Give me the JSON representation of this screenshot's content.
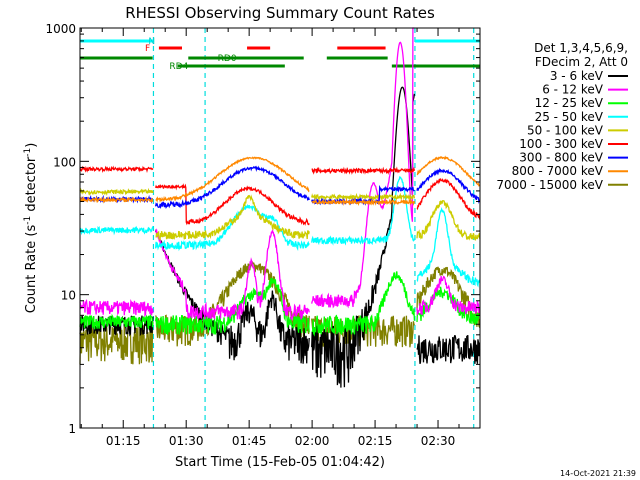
{
  "chart_data": {
    "type": "line",
    "title": "RHESSI Observing Summary Count Rates",
    "xlabel": "Start Time (15-Feb-05 01:04:42)",
    "ylabel_main": "Count Rate (s",
    "ylabel_sup1": "-1",
    "ylabel_mid": " detector",
    "ylabel_sup2": "-1",
    "ylabel_end": ")",
    "yscale": "log",
    "ylim": [
      1,
      1000
    ],
    "xlim_minutes": [
      4.7,
      100
    ],
    "xticks": [
      {
        "m": 15,
        "label": "01:15"
      },
      {
        "m": 30,
        "label": "01:30"
      },
      {
        "m": 45,
        "label": "01:45"
      },
      {
        "m": 60,
        "label": "02:00"
      },
      {
        "m": 75,
        "label": "02:15"
      },
      {
        "m": 90,
        "label": "02:30"
      }
    ],
    "yticks": [
      {
        "v": 1,
        "label": "1"
      },
      {
        "v": 10,
        "label": "10"
      },
      {
        "v": 100,
        "label": "100"
      },
      {
        "v": 1000,
        "label": "1000"
      }
    ],
    "legend_header": [
      "Det 1,3,4,5,6,9,",
      "FDecim 2, Att 0"
    ],
    "series": [
      {
        "name": "3 - 6 keV",
        "color": "#000000"
      },
      {
        "name": "6 - 12 keV",
        "color": "#ff00ff"
      },
      {
        "name": "12 - 25 keV",
        "color": "#00ff00"
      },
      {
        "name": "25 - 50 keV",
        "color": "#00ffff"
      },
      {
        "name": "50 - 100 keV",
        "color": "#cccc00"
      },
      {
        "name": "100 - 300 keV",
        "color": "#ff0000"
      },
      {
        "name": "300 - 800 keV",
        "color": "#0000ff"
      },
      {
        "name": "800 - 7000 keV",
        "color": "#ff8800"
      },
      {
        "name": "7000 - 15000 keV",
        "color": "#808000"
      }
    ],
    "flag_labels": {
      "n": "N",
      "f": "F",
      "rd0": "RD0",
      "rd4": "RD4"
    },
    "flags": {
      "night": [
        [
          0,
          22.2
        ],
        [
          84.5,
          100
        ]
      ],
      "flare": [
        [
          23.5,
          29
        ],
        [
          44.5,
          50
        ],
        [
          66,
          77.5
        ]
      ],
      "rd0": [
        [
          0,
          22
        ],
        [
          30.5,
          58
        ],
        [
          63.5,
          78
        ]
      ],
      "rd4": [
        [
          28,
          53.5
        ],
        [
          79,
          100
        ]
      ]
    },
    "night_boundaries_minutes": [
      22.2,
      34.5,
      84.5,
      98.5
    ],
    "datestamp": "14-Oct-2021 21:39"
  }
}
